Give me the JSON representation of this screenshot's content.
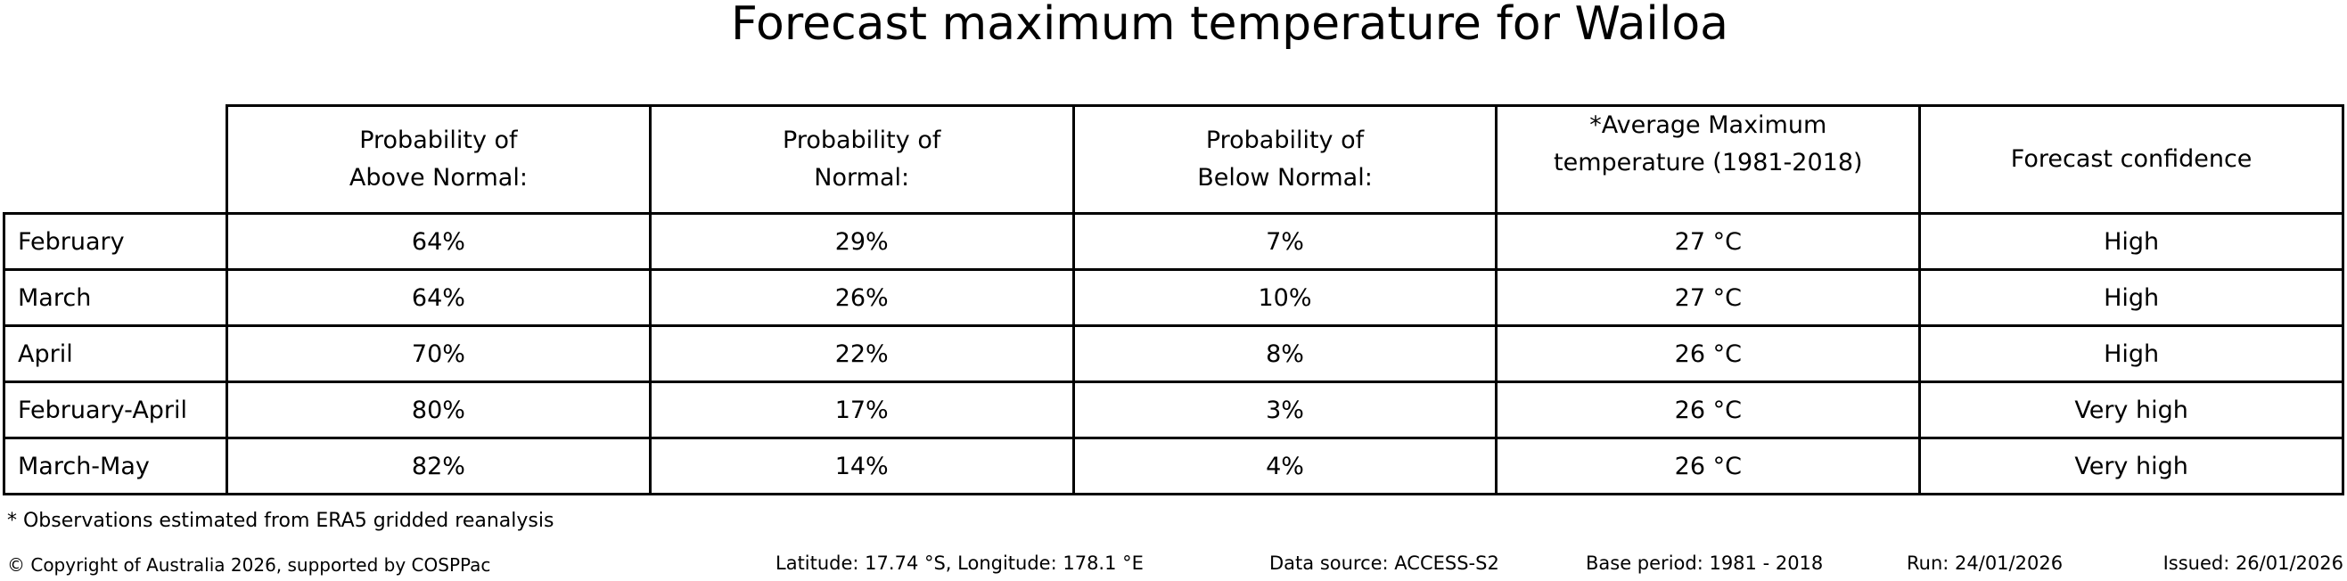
{
  "title": "Forecast maximum temperature for Wailoa",
  "table": {
    "headers": [
      "Probability of\nAbove Normal:",
      "Probability of\nNormal:",
      "Probability of\nBelow Normal:",
      "*Average Maximum\ntemperature (1981-2018)",
      "Forecast confidence"
    ],
    "rows": [
      {
        "label": "February",
        "cells": [
          "64%",
          "29%",
          "7%",
          "27 °C",
          "High"
        ]
      },
      {
        "label": "March",
        "cells": [
          "64%",
          "26%",
          "10%",
          "27 °C",
          "High"
        ]
      },
      {
        "label": "April",
        "cells": [
          "70%",
          "22%",
          "8%",
          "26 °C",
          "High"
        ]
      },
      {
        "label": "February-April",
        "cells": [
          "80%",
          "17%",
          "3%",
          "26 °C",
          "Very high"
        ]
      },
      {
        "label": "March-May",
        "cells": [
          "82%",
          "14%",
          "4%",
          "26 °C",
          "Very high"
        ]
      }
    ]
  },
  "footnote": "* Observations estimated from ERA5 gridded reanalysis",
  "footer": {
    "copyright": "© Copyright of Australia 2026, supported by COSPPac",
    "location": "Latitude: 17.74 °S, Longitude: 178.1 °E",
    "data_source": "Data source: ACCESS-S2",
    "base_period": "Base period: 1981 - 2018",
    "run": "Run: 24/01/2026",
    "issued": "Issued: 26/01/2026"
  },
  "colors": {
    "text": "#000000",
    "background": "#ffffff",
    "border": "#000000"
  },
  "chart_data": {
    "type": "table",
    "title": "Forecast maximum temperature for Wailoa",
    "row_header": [
      "February",
      "March",
      "April",
      "February-April",
      "March-May"
    ],
    "columns": [
      "Probability of Above Normal:",
      "Probability of Normal:",
      "Probability of Below Normal:",
      "*Average Maximum temperature (1981-2018)",
      "Forecast confidence"
    ],
    "rows": [
      [
        "64%",
        "29%",
        "7%",
        "27 °C",
        "High"
      ],
      [
        "64%",
        "26%",
        "10%",
        "27 °C",
        "High"
      ],
      [
        "70%",
        "22%",
        "8%",
        "26 °C",
        "High"
      ],
      [
        "80%",
        "17%",
        "3%",
        "26 °C",
        "Very high"
      ],
      [
        "82%",
        "14%",
        "4%",
        "26 °C",
        "Very high"
      ]
    ],
    "series": [
      {
        "name": "Probability of Above Normal (%)",
        "values": [
          64,
          64,
          70,
          80,
          82
        ]
      },
      {
        "name": "Probability of Normal (%)",
        "values": [
          29,
          26,
          22,
          17,
          14
        ]
      },
      {
        "name": "Probability of Below Normal (%)",
        "values": [
          7,
          10,
          8,
          3,
          4
        ]
      },
      {
        "name": "Average Maximum temperature 1981-2018 (°C)",
        "values": [
          27,
          27,
          26,
          26,
          26
        ]
      }
    ],
    "categories": [
      "February",
      "March",
      "April",
      "February-April",
      "March-May"
    ],
    "annotations": [
      "* Observations estimated from ERA5 gridded reanalysis",
      "Latitude: 17.74 °S, Longitude: 178.1 °E",
      "Data source: ACCESS-S2",
      "Base period: 1981 - 2018",
      "Run: 24/01/2026",
      "Issued: 26/01/2026"
    ]
  }
}
